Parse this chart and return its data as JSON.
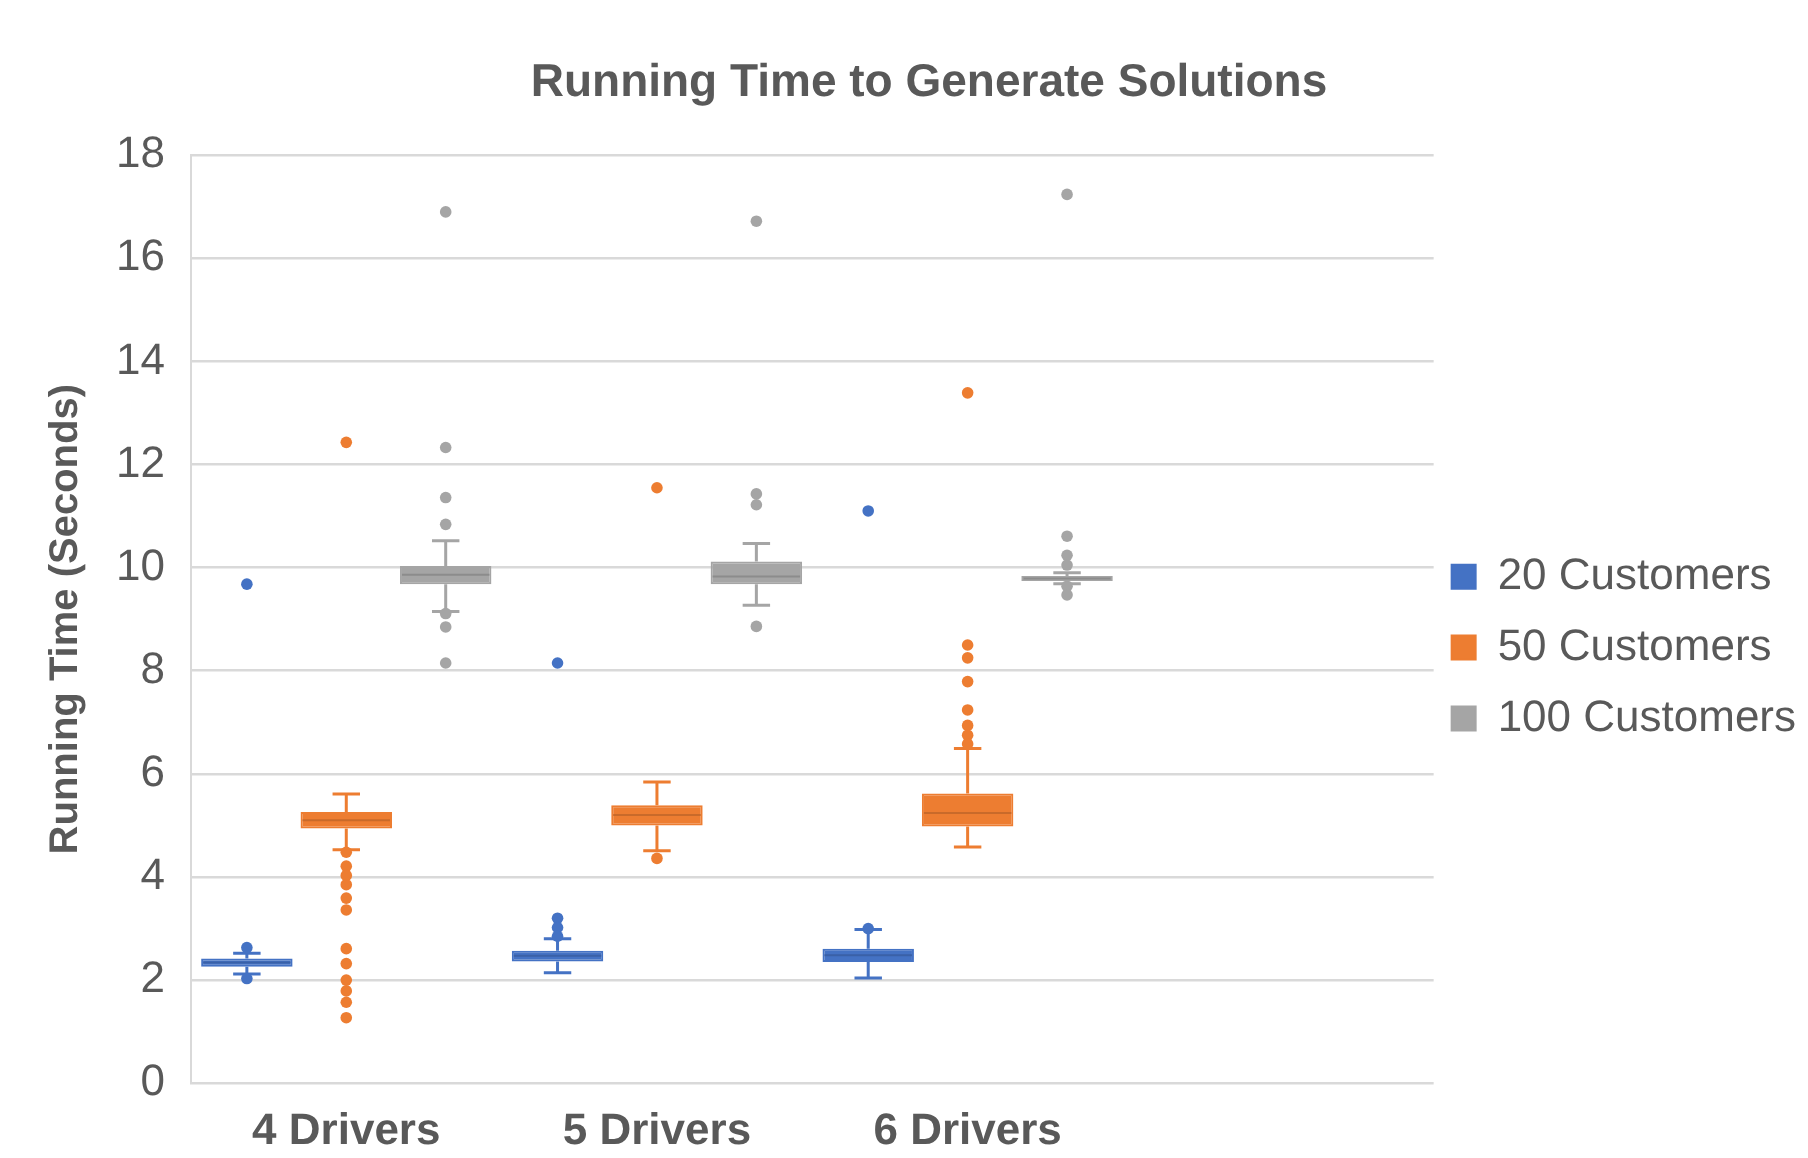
{
  "chart_data": {
    "type": "box",
    "title": "Running Time to Generate Solutions",
    "ylabel": "Running Time (Seconds)",
    "categories": [
      "4 Drivers",
      "5 Drivers",
      "6 Drivers",
      null
    ],
    "series": [
      {
        "name": "20 Customers",
        "color": "#4472c4",
        "boxes": [
          {
            "low": 2.12,
            "q1": 2.26,
            "median": 2.34,
            "q3": 2.42,
            "high": 2.52,
            "outliers": [
              9.68,
              2.63,
              2.03
            ]
          },
          {
            "low": 2.14,
            "q1": 2.36,
            "median": 2.47,
            "q3": 2.57,
            "high": 2.8,
            "outliers": [
              8.15,
              3.2,
              3.02,
              2.85
            ]
          },
          {
            "low": 2.04,
            "q1": 2.35,
            "median": 2.48,
            "q3": 2.61,
            "high": 2.98,
            "outliers": [
              11.1,
              3.0
            ]
          },
          null
        ]
      },
      {
        "name": "50 Customers",
        "color": "#ed7d31",
        "boxes": [
          {
            "low": 4.53,
            "q1": 4.94,
            "median": 5.1,
            "q3": 5.26,
            "high": 5.61,
            "outliers": [
              12.43,
              4.48,
              4.21,
              4.03,
              3.85,
              3.59,
              3.36,
              2.61,
              2.32,
              2.0,
              1.79,
              1.57,
              1.27
            ]
          },
          {
            "low": 4.51,
            "q1": 5.0,
            "median": 5.2,
            "q3": 5.39,
            "high": 5.84,
            "outliers": [
              11.55,
              4.36
            ]
          },
          {
            "low": 4.58,
            "q1": 4.98,
            "median": 5.24,
            "q3": 5.62,
            "high": 6.49,
            "outliers": [
              13.39,
              8.5,
              8.25,
              7.79,
              7.24,
              6.94,
              6.75,
              6.58
            ]
          },
          null
        ]
      },
      {
        "name": "100 Customers",
        "color": "#a5a5a5",
        "boxes": [
          {
            "low": 9.15,
            "q1": 9.68,
            "median": 9.86,
            "q3": 10.03,
            "high": 10.52,
            "outliers": [
              16.9,
              12.33,
              11.36,
              10.84,
              9.11,
              8.85,
              8.15
            ]
          },
          {
            "low": 9.27,
            "q1": 9.68,
            "median": 9.83,
            "q3": 10.12,
            "high": 10.47,
            "outliers": [
              16.72,
              11.43,
              11.22,
              8.86
            ]
          },
          {
            "low": 9.69,
            "q1": 9.74,
            "median": 9.79,
            "q3": 9.84,
            "high": 9.9,
            "outliers": [
              17.24,
              10.61,
              10.24,
              10.05,
              9.64,
              9.47
            ]
          },
          null
        ]
      }
    ],
    "ylim": [
      0,
      18
    ],
    "yticks": [
      0,
      2,
      4,
      6,
      8,
      10,
      12,
      14,
      16,
      18
    ],
    "grid": "y",
    "legend": "right",
    "marker": "circle"
  }
}
